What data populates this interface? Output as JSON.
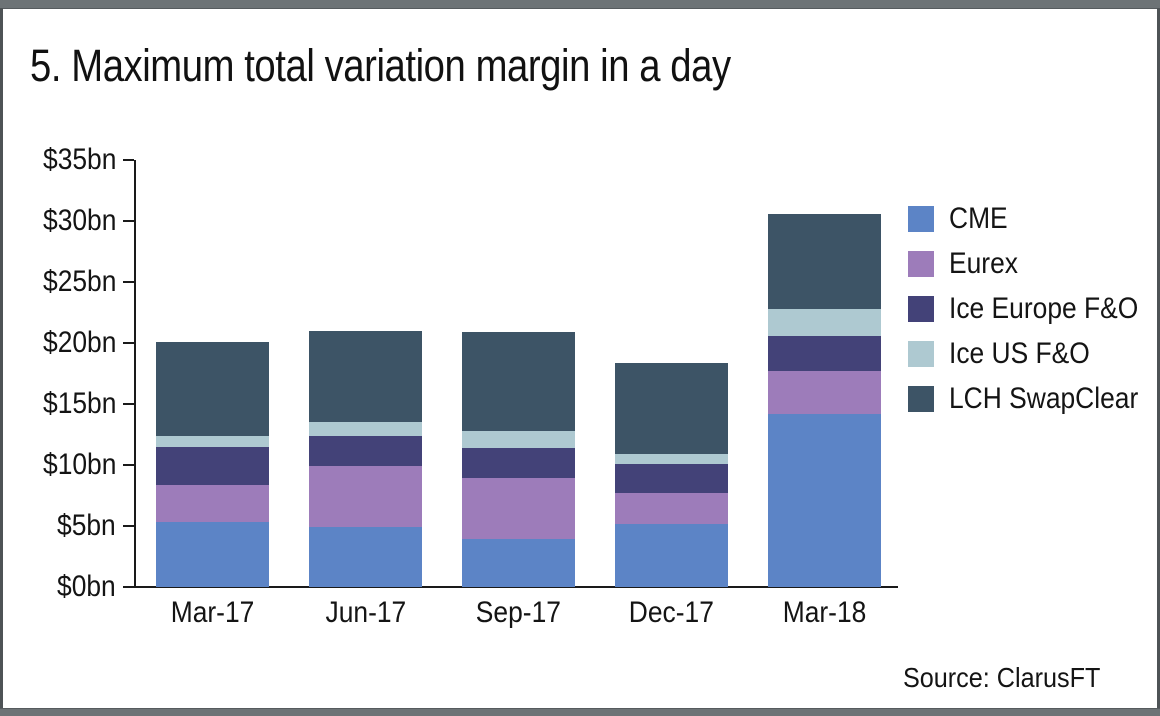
{
  "frame": {
    "source": "Source: ClarusFT"
  },
  "chart_data": {
    "type": "bar",
    "stacked": true,
    "title": "5. Maximum total variation margin in a day",
    "categories": [
      "Mar-17",
      "Jun-17",
      "Sep-17",
      "Dec-17",
      "Mar-18"
    ],
    "series": [
      {
        "name": "CME",
        "color": "#5c84c6",
        "values": [
          5.3,
          4.9,
          3.9,
          5.2,
          14.2
        ]
      },
      {
        "name": "Eurex",
        "color": "#9d7cba",
        "values": [
          3.1,
          5.0,
          5.0,
          2.5,
          3.5
        ]
      },
      {
        "name": "Ice Europe F&O",
        "color": "#434278",
        "values": [
          3.1,
          2.5,
          2.5,
          2.4,
          2.9
        ]
      },
      {
        "name": "Ice US F&O",
        "color": "#aec9d1",
        "values": [
          0.9,
          1.1,
          1.4,
          0.8,
          2.2
        ]
      },
      {
        "name": "LCH SwapClear",
        "color": "#3d5466",
        "values": [
          7.7,
          7.5,
          8.1,
          7.5,
          7.8
        ]
      }
    ],
    "ylabel": "",
    "xlabel": "",
    "ylim": [
      0,
      35
    ],
    "y_tick_step": 5,
    "y_tick_labels": [
      "$0bn",
      "$5bn",
      "$10bn",
      "$15bn",
      "$20bn",
      "$25bn",
      "$30bn",
      "$35bn"
    ],
    "legend_position": "right",
    "grid": false,
    "source": "Source: ClarusFT"
  }
}
